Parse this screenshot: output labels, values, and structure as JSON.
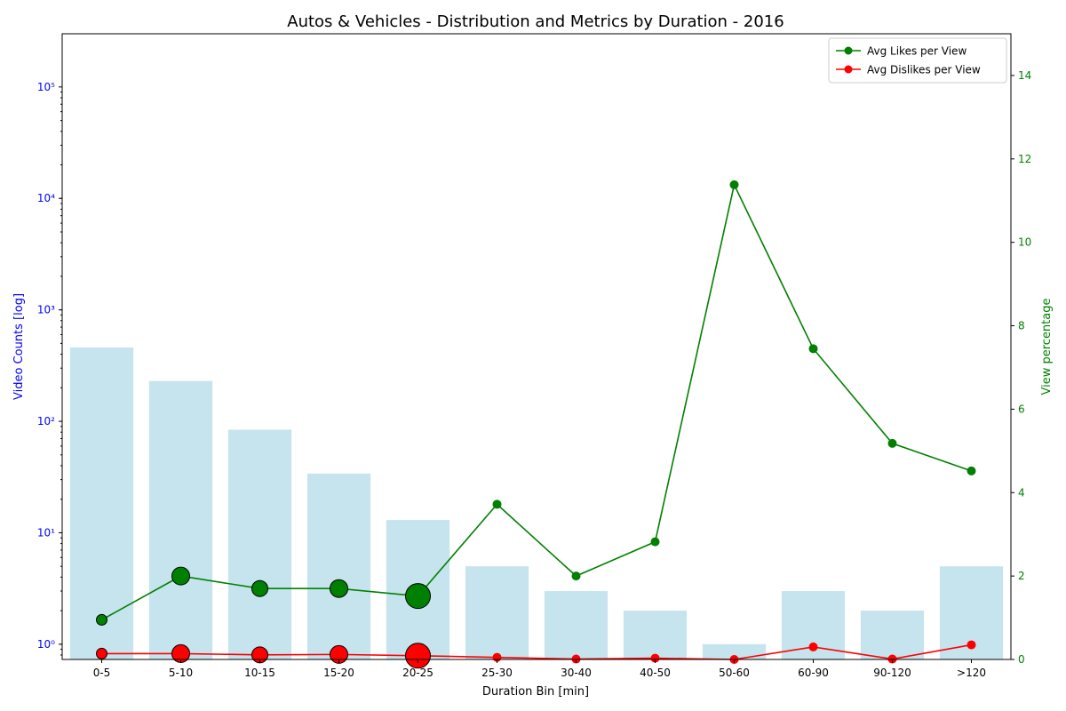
{
  "chart_data": {
    "type": "bar",
    "title": "Autos & Vehicles - Distribution and Metrics by Duration - 2016",
    "xlabel": "Duration Bin [min]",
    "ylabel_left": "Video Counts [log]",
    "ylabel_right": "View percentage",
    "y_left_scale": "log",
    "y_left_tick_labels": [
      "10⁰",
      "10¹",
      "10²",
      "10³",
      "10⁴",
      "10⁵"
    ],
    "y_left_ticks": [
      1,
      10,
      100,
      1000,
      10000,
      100000
    ],
    "y_left_range": [
      0.73,
      300000
    ],
    "y_right_range": [
      0,
      15
    ],
    "y_right_ticks": [
      "0",
      "2",
      "4",
      "6",
      "8",
      "10",
      "12",
      "14"
    ],
    "categories": [
      "0-5",
      "5-10",
      "10-15",
      "15-20",
      "20-25",
      "25-30",
      "30-40",
      "40-50",
      "50-60",
      "60-90",
      "90-120",
      ">120"
    ],
    "bars": {
      "name": "Video Counts",
      "color": "#add8e6",
      "values": [
        460,
        230,
        84,
        34,
        13,
        5,
        3,
        2,
        1,
        3,
        2,
        5
      ]
    },
    "series": [
      {
        "name": "Avg Likes per View",
        "color": "#008000",
        "values": [
          0.95,
          2.0,
          1.7,
          1.7,
          1.52,
          3.72,
          2.0,
          2.82,
          11.38,
          7.45,
          5.18,
          4.52
        ],
        "marker_sizes": [
          6,
          10,
          9,
          10,
          14,
          5,
          5,
          5,
          5,
          5,
          5,
          5
        ]
      },
      {
        "name": "Avg Dislikes per View",
        "color": "#ff0000",
        "values": [
          0.14,
          0.14,
          0.11,
          0.12,
          0.09,
          0.05,
          0.01,
          0.03,
          0.0,
          0.3,
          0.01,
          0.35
        ],
        "marker_sizes": [
          6,
          10,
          9,
          10,
          14,
          5,
          5,
          5,
          5,
          5,
          5,
          5
        ]
      }
    ],
    "legend_position": "top-right",
    "grid": false,
    "colors": {
      "left_axis": "#0000ff",
      "right_axis": "#008000"
    }
  }
}
